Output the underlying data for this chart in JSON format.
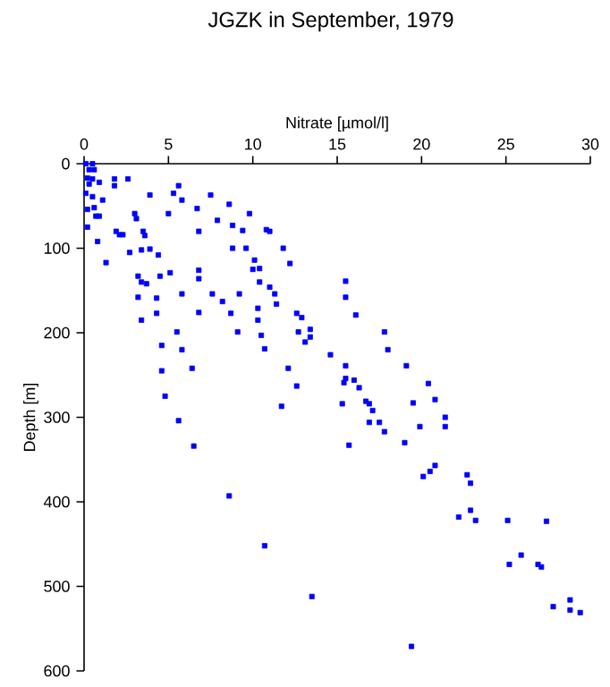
{
  "chart_data": {
    "type": "scatter",
    "title": "JGZK in September, 1979",
    "xlabel": "Nitrate [µmol/l]",
    "ylabel": "Depth [m]",
    "xlim": [
      0,
      30
    ],
    "xticks": [
      0,
      5,
      10,
      15,
      20,
      25,
      30
    ],
    "ylim": [
      600,
      0
    ],
    "yticks": [
      0,
      100,
      200,
      300,
      400,
      500,
      600
    ],
    "grid": false,
    "marker": "square",
    "series": [
      {
        "color": "#0000ff",
        "x": [
          0.1,
          0.5,
          0.3,
          0.6,
          0.2,
          0.5,
          0.9,
          0.3,
          1.8,
          2.6,
          0.1,
          0.5,
          1.1,
          0.6,
          0.2,
          0.7,
          0.9,
          0.2,
          0.8,
          1.3,
          1.8,
          5.6,
          5.3,
          5.8,
          7.5,
          3.9,
          8.6,
          6.7,
          5.0,
          3.0,
          3.1,
          7.9,
          8.8,
          9.8,
          1.9,
          2.1,
          2.3,
          3.5,
          3.6,
          6.8,
          9.4,
          10.8,
          11.0,
          3.9,
          3.4,
          2.7,
          4.4,
          8.8,
          9.6,
          11.8,
          10.1,
          10.4,
          10.0,
          12.2,
          6.8,
          6.8,
          3.2,
          3.4,
          3.7,
          4.5,
          5.1,
          10.4,
          11.0,
          11.3,
          11.4,
          3.2,
          4.3,
          5.8,
          7.6,
          8.2,
          9.2,
          10.3,
          6.8,
          4.3,
          3.4,
          8.7,
          10.3,
          12.6,
          12.9,
          5.5,
          9.1,
          10.5,
          12.7,
          13.4,
          13.4,
          13.1,
          4.6,
          5.8,
          10.7,
          14.6,
          15.5,
          15.5,
          16.1,
          17.8,
          18.0,
          19.1,
          20.4,
          20.8,
          21.4,
          21.4,
          19.5,
          19.9,
          19.0,
          20.8,
          20.5,
          20.1,
          22.7,
          15.5,
          15.5,
          15.4,
          16.0,
          16.3,
          16.7,
          16.9,
          17.1,
          16.9,
          17.5,
          17.8,
          15.7,
          15.3,
          11.7,
          12.1,
          12.6,
          6.5,
          22.9,
          8.6,
          22.9,
          22.2,
          23.2,
          25.1,
          27.4,
          10.7,
          25.9,
          25.2,
          26.9,
          27.1,
          13.5,
          28.8,
          27.8,
          28.8,
          29.4,
          19.4,
          4.6,
          6.4,
          4.8,
          5.6
        ],
        "values": [
          0,
          0,
          7,
          7,
          17,
          18,
          22,
          24,
          18,
          18,
          35,
          39,
          43,
          52,
          54,
          62,
          62,
          75,
          92,
          117,
          26,
          26,
          35,
          43,
          37,
          37,
          48,
          53,
          59,
          59,
          65,
          67,
          73,
          59,
          80,
          84,
          84,
          80,
          85,
          80,
          79,
          78,
          80,
          101,
          102,
          105,
          108,
          100,
          100,
          100,
          114,
          124,
          125,
          118,
          126,
          136,
          133,
          140,
          142,
          133,
          129,
          140,
          146,
          154,
          166,
          158,
          159,
          154,
          154,
          163,
          154,
          171,
          176,
          177,
          185,
          177,
          185,
          177,
          182,
          199,
          199,
          203,
          199,
          196,
          205,
          211,
          215,
          220,
          219,
          226,
          139,
          158,
          179,
          199,
          220,
          239,
          260,
          279,
          300,
          311,
          283,
          311,
          330,
          357,
          364,
          370,
          368,
          239,
          254,
          259,
          256,
          265,
          281,
          284,
          292,
          306,
          306,
          317,
          333,
          284,
          287,
          242,
          263,
          334,
          378,
          393,
          410,
          418,
          422,
          422,
          423,
          452,
          463,
          474,
          474,
          477,
          512,
          516,
          524,
          528,
          531,
          571,
          245,
          242,
          275,
          304
        ]
      }
    ]
  }
}
